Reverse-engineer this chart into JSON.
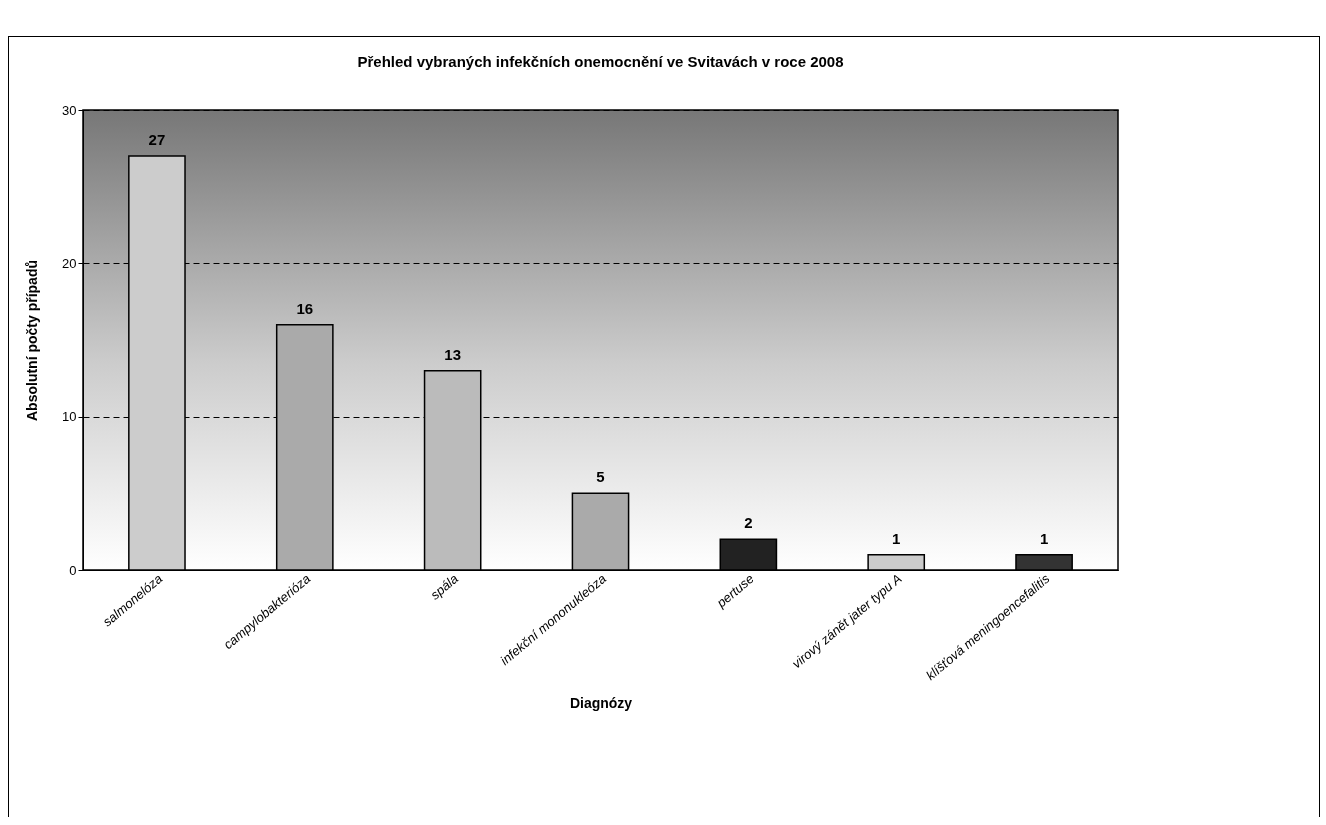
{
  "chart_data": {
    "type": "bar",
    "title": "Přehled vybraných infekčních onemocnění ve Svitavách v roce 2008",
    "xlabel": "Diagnózy",
    "ylabel": "Absolutní počty případů",
    "categories": [
      "salmonelóza",
      "campylobakterióza",
      "spála",
      "infekční mononukleóza",
      "pertuse",
      "virový zánět jater typu A",
      "klíšťová meningoencefalitis"
    ],
    "values": [
      27,
      16,
      13,
      5,
      2,
      1,
      1
    ],
    "colors": [
      "#cccccc",
      "#aaaaaa",
      "#bbbbbb",
      "#aaaaaa",
      "#222222",
      "#cccccc",
      "#333333"
    ],
    "ylim": [
      0,
      30
    ],
    "yticks": [
      0,
      10,
      20,
      30
    ],
    "grid": "y",
    "data_labels": true
  }
}
